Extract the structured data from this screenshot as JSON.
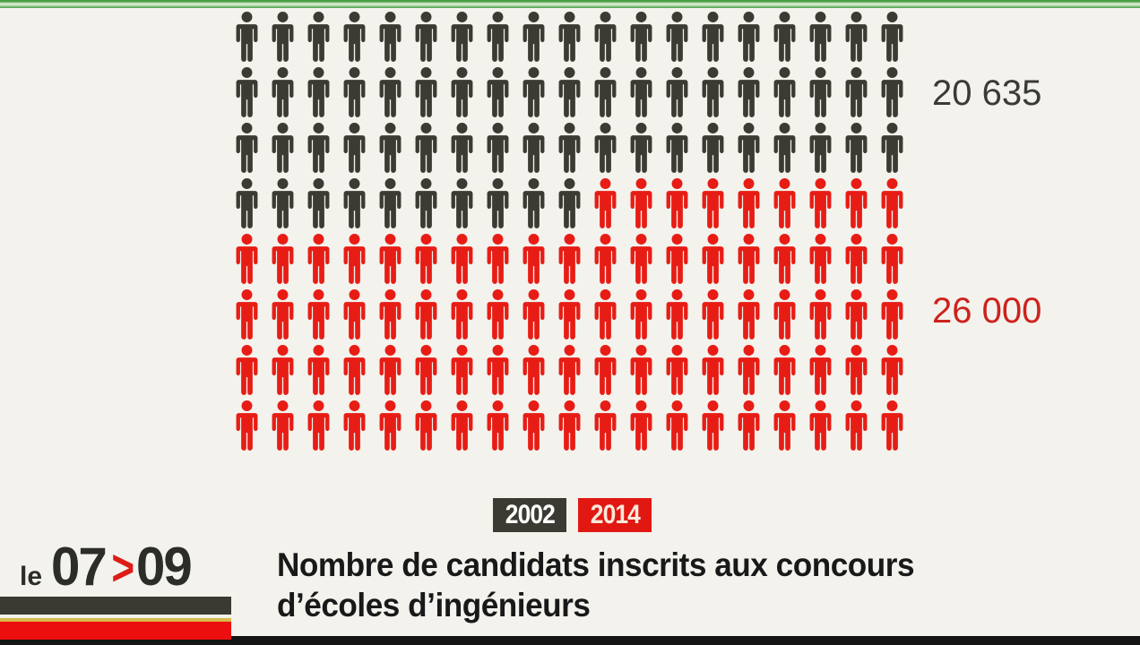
{
  "chart_data": {
    "type": "pictogram",
    "title": "Nombre de candidats inscrits aux concours d’écoles d’ingénieurs",
    "categories": [
      "2002",
      "2014"
    ],
    "values": [
      20635,
      26000
    ],
    "series": [
      {
        "name": "2002",
        "value": 20635,
        "value_label": "20 635",
        "color": "#3b3b33",
        "icon_count": 67
      },
      {
        "name": "2014",
        "value": 26000,
        "value_label": "26 000",
        "color": "#e71d15",
        "icon_count": 85
      }
    ],
    "grid": {
      "columns": 19,
      "rows": 8,
      "total_icons": 152,
      "fill_order": "row-major"
    },
    "legend_position": "bottom-center"
  },
  "legend": {
    "items": [
      {
        "label": "2002"
      },
      {
        "label": "2014"
      }
    ]
  },
  "logo": {
    "prefix": "le",
    "hour_start": "07",
    "separator": ">",
    "hour_end": "09"
  },
  "caption": {
    "line1": "Nombre de candidats inscrits aux concours",
    "line2": "d’écoles d’ingénieurs"
  },
  "colors": {
    "background": "#f3f2ed",
    "green_bar": "#4a9d44",
    "green_bar_light": "#dcedd6",
    "label_2002": "#3b3b35",
    "label_2014": "#cd221c",
    "badge_2002_bg": "#3b3b33",
    "badge_2002_fg": "#ffffff",
    "badge_2014_bg": "#e11812",
    "badge_2014_fg": "#f8e9dc",
    "logo_text": "#2c2c28",
    "logo_chevron": "#dd1d16",
    "bar_dark": "#3a3a32",
    "bar_yellow": "#d7ba4c",
    "bar_red": "#ec0f0f",
    "bottom_strip": "#141414",
    "caption_text": "#191919"
  }
}
